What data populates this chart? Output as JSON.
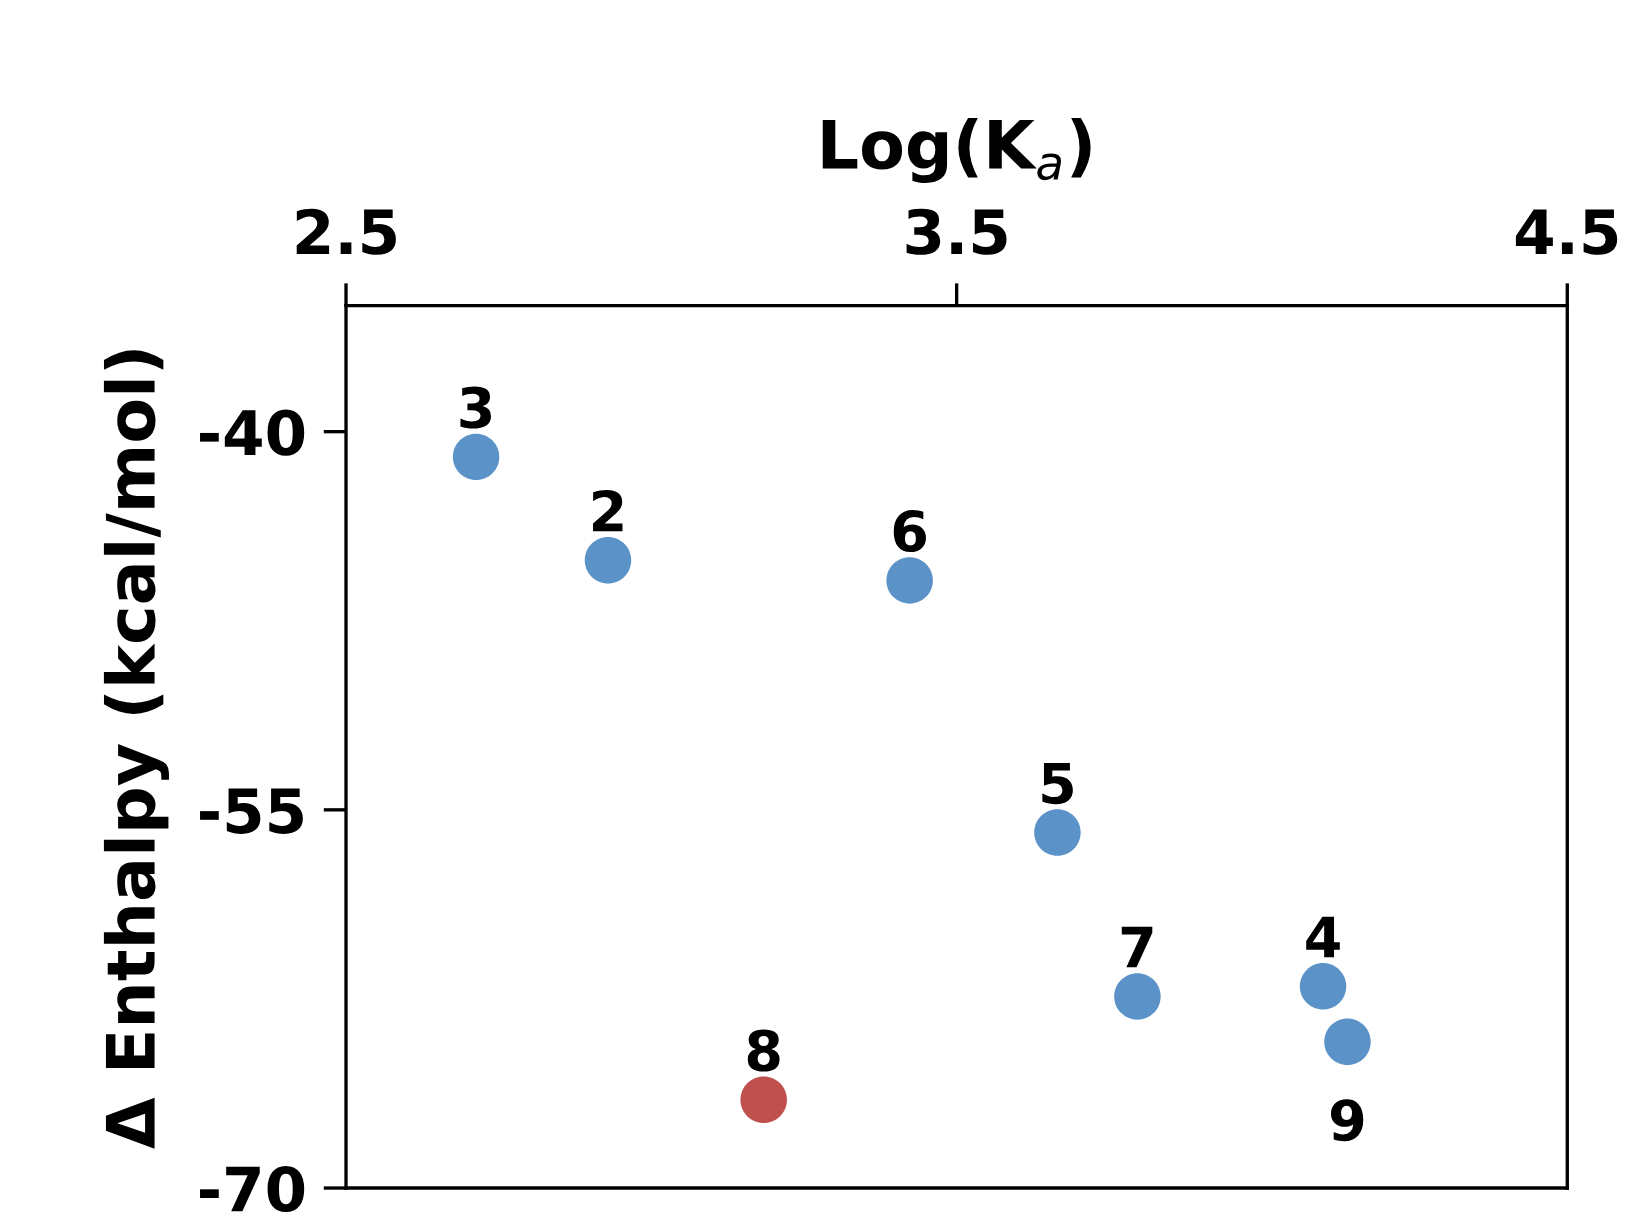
{
  "chart_data": {
    "type": "scatter",
    "xlabel": "Log(K$_{a}$)",
    "ylabel": "Δ Enthalpy (kcal/mol)",
    "x": [
      2.713,
      2.929,
      3.423,
      3.665,
      3.796,
      4.1,
      4.14,
      3.184
    ],
    "values": [
      -41.0,
      -45.1,
      -45.9,
      -55.9,
      -62.4,
      -62.0,
      -64.2,
      -66.5
    ],
    "colors": [
      "#5b93c9",
      "#5b93c9",
      "#5b93c9",
      "#5b93c9",
      "#5b93c9",
      "#5b93c9",
      "#5b93c9",
      "#c0504d"
    ],
    "xlim": [
      2.5,
      4.5
    ],
    "xticks": [
      2.5,
      3.5,
      4.5
    ],
    "ylim": [
      -70,
      -35
    ],
    "yticks": [
      -40,
      -55,
      -70
    ],
    "marker": "circle",
    "grid": false,
    "legend": false,
    "annotations": [
      {
        "text": "3",
        "x": 2.713,
        "y": -41.0
      },
      {
        "text": "2",
        "x": 2.929,
        "y": -45.1
      },
      {
        "text": "6",
        "x": 3.423,
        "y": -45.9
      },
      {
        "text": "5",
        "x": 3.665,
        "y": -55.9
      },
      {
        "text": "7",
        "x": 3.796,
        "y": -62.4
      },
      {
        "text": "4",
        "x": 4.1,
        "y": -62.0
      },
      {
        "text": "9",
        "x": 4.14,
        "y": -64.2
      },
      {
        "text": "8",
        "x": 3.184,
        "y": -66.5
      }
    ]
  }
}
